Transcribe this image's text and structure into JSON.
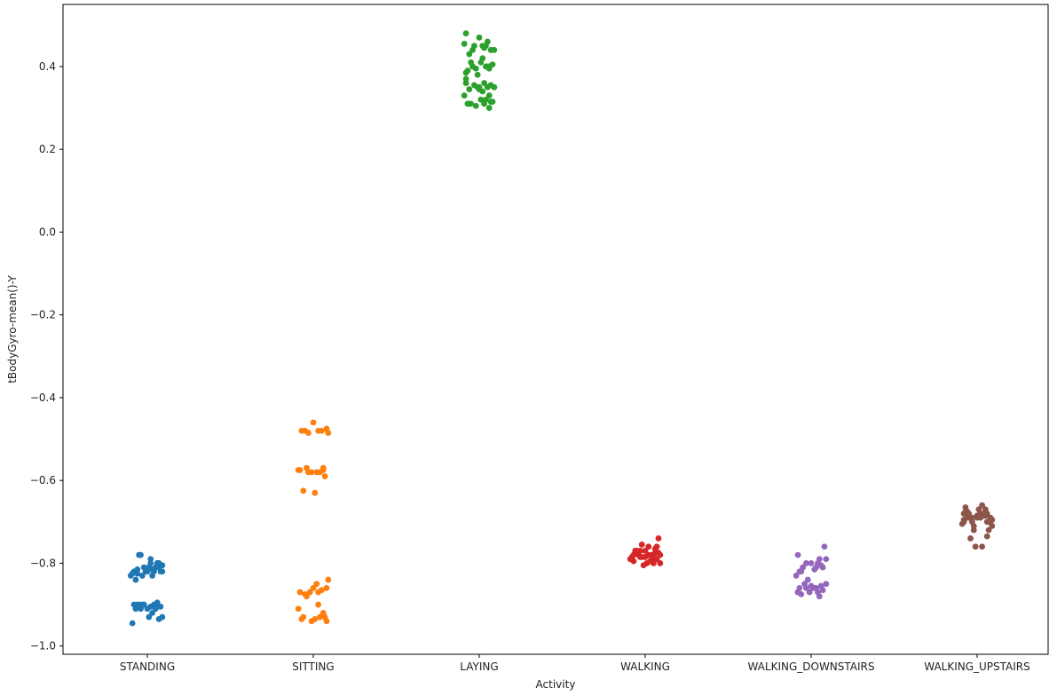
{
  "chart_data": {
    "type": "scatter",
    "title": "",
    "xlabel": "Activity",
    "ylabel": "tBodyGyro-mean()-Y",
    "categories": [
      "STANDING",
      "SITTING",
      "LAYING",
      "WALKING",
      "WALKING_DOWNSTAIRS",
      "WALKING_UPSTAIRS"
    ],
    "ylim": [
      -1.02,
      0.55
    ],
    "yticks": [
      -1.0,
      -0.8,
      -0.6,
      -0.4,
      -0.2,
      0.0,
      0.2,
      0.4
    ],
    "ytick_labels": [
      "−1.0",
      "−0.8",
      "−0.6",
      "−0.4",
      "−0.2",
      "0.0",
      "0.2",
      "0.4"
    ],
    "grid": false,
    "colors": [
      "#1f77b4",
      "#ff7f0e",
      "#2ca02c",
      "#d62728",
      "#9467bd",
      "#8c564b"
    ],
    "series": [
      {
        "category": "STANDING",
        "jitter": [
          -0.08,
          0.05,
          -0.03,
          0.07,
          0.0,
          -0.06,
          0.03,
          0.09,
          -0.1,
          0.02,
          -0.05,
          0.06,
          -0.02,
          0.08,
          -0.07,
          0.04,
          0.01,
          -0.09,
          0.06,
          -0.04,
          0.03,
          -0.01,
          0.07,
          -0.06,
          0.02,
          0.09,
          -0.08,
          0.05,
          -0.03,
          0.0,
          0.04,
          -0.07,
          0.08,
          -0.02,
          0.06,
          -0.05,
          0.01,
          0.07,
          -0.09,
          0.03,
          -0.04,
          0.05,
          0.09,
          -0.06,
          0.02
        ],
        "values": [
          -0.82,
          -0.81,
          -0.83,
          -0.8,
          -0.82,
          -0.825,
          -0.815,
          -0.805,
          -0.83,
          -0.79,
          -0.78,
          -0.8,
          -0.81,
          -0.82,
          -0.84,
          -0.82,
          -0.81,
          -0.825,
          -0.8,
          -0.78,
          -0.83,
          -0.82,
          -0.81,
          -0.815,
          -0.8,
          -0.82,
          -0.9,
          -0.905,
          -0.9,
          -0.91,
          -0.9,
          -0.91,
          -0.905,
          -0.9,
          -0.895,
          -0.9,
          -0.93,
          -0.935,
          -0.945,
          -0.92,
          -0.91,
          -0.91,
          -0.93,
          -0.9,
          -0.905
        ]
      },
      {
        "category": "SITTING",
        "jitter": [
          -0.07,
          0.05,
          -0.03,
          0.08,
          0.0,
          -0.05,
          0.03,
          0.09,
          -0.09,
          0.02,
          -0.04,
          0.06,
          -0.01,
          0.07,
          -0.08,
          0.04,
          0.01,
          -0.06,
          0.06,
          -0.03,
          0.03,
          -0.02,
          0.08,
          -0.05,
          0.02,
          0.09,
          -0.08,
          0.05,
          -0.04,
          0.0,
          0.04,
          -0.07,
          0.07,
          -0.01,
          0.06,
          -0.06,
          0.01,
          0.08,
          -0.09,
          0.03
        ],
        "values": [
          -0.48,
          -0.48,
          -0.485,
          -0.475,
          -0.46,
          -0.48,
          -0.48,
          -0.485,
          -0.575,
          -0.58,
          -0.57,
          -0.575,
          -0.58,
          -0.59,
          -0.575,
          -0.58,
          -0.63,
          -0.625,
          -0.57,
          -0.58,
          -0.87,
          -0.87,
          -0.86,
          -0.875,
          -0.85,
          -0.84,
          -0.87,
          -0.865,
          -0.88,
          -0.86,
          -0.93,
          -0.935,
          -0.93,
          -0.94,
          -0.92,
          -0.93,
          -0.935,
          -0.94,
          -0.91,
          -0.9
        ]
      },
      {
        "category": "LAYING",
        "jitter": [
          -0.08,
          0.05,
          -0.03,
          0.07,
          0.0,
          -0.06,
          0.03,
          0.09,
          -0.09,
          0.02,
          -0.05,
          0.06,
          -0.02,
          0.08,
          -0.07,
          0.04,
          0.01,
          -0.08,
          0.06,
          -0.04,
          0.03,
          -0.01,
          0.07,
          -0.06,
          0.02,
          0.09,
          -0.08,
          0.05,
          -0.03,
          0.0,
          0.04,
          -0.07,
          0.08,
          -0.02,
          0.06,
          -0.05,
          0.01,
          0.07,
          -0.09,
          0.03,
          -0.04,
          0.05,
          0.09,
          -0.06,
          0.02,
          -0.01,
          0.06,
          -0.08,
          0.04,
          0.0
        ],
        "values": [
          0.48,
          0.46,
          0.45,
          0.44,
          0.47,
          0.43,
          0.445,
          0.44,
          0.455,
          0.45,
          0.41,
          0.4,
          0.395,
          0.405,
          0.39,
          0.4,
          0.41,
          0.385,
          0.395,
          0.4,
          0.36,
          0.35,
          0.355,
          0.345,
          0.34,
          0.35,
          0.36,
          0.35,
          0.355,
          0.345,
          0.32,
          0.31,
          0.315,
          0.305,
          0.3,
          0.31,
          0.32,
          0.315,
          0.33,
          0.31,
          0.44,
          0.4,
          0.35,
          0.31,
          0.42,
          0.38,
          0.33,
          0.37,
          0.45,
          0.35
        ]
      },
      {
        "category": "WALKING",
        "jitter": [
          -0.08,
          0.05,
          -0.03,
          0.07,
          0.0,
          -0.06,
          0.03,
          0.09,
          -0.09,
          0.02,
          -0.05,
          0.06,
          -0.02,
          0.08,
          -0.07,
          0.04,
          0.01,
          -0.08,
          0.06,
          -0.04,
          0.03,
          -0.01,
          0.07,
          -0.06,
          0.02,
          0.09,
          -0.08,
          0.05,
          -0.03,
          0.0,
          0.04,
          -0.07,
          0.08,
          -0.02,
          0.06
        ],
        "values": [
          -0.79,
          -0.78,
          -0.77,
          -0.76,
          -0.785,
          -0.775,
          -0.795,
          -0.8,
          -0.79,
          -0.78,
          -0.77,
          -0.765,
          -0.755,
          -0.74,
          -0.78,
          -0.79,
          -0.8,
          -0.785,
          -0.775,
          -0.78,
          -0.795,
          -0.805,
          -0.79,
          -0.77,
          -0.76,
          -0.78,
          -0.79,
          -0.8,
          -0.785,
          -0.77,
          -0.78,
          -0.795,
          -0.775,
          -0.785,
          -0.79
        ]
      },
      {
        "category": "WALKING_DOWNSTAIRS",
        "jitter": [
          -0.08,
          0.05,
          -0.03,
          0.07,
          0.0,
          -0.06,
          0.03,
          0.09,
          -0.09,
          0.02,
          -0.05,
          0.06,
          -0.02,
          0.08,
          -0.07,
          0.04,
          0.01,
          -0.08,
          0.06,
          -0.04,
          0.03,
          -0.01,
          0.07,
          -0.06,
          0.02,
          0.09,
          -0.08,
          0.05,
          -0.03,
          0.0,
          0.04,
          -0.07
        ],
        "values": [
          -0.78,
          -0.79,
          -0.8,
          -0.81,
          -0.8,
          -0.82,
          -0.81,
          -0.79,
          -0.83,
          -0.815,
          -0.81,
          -0.805,
          -0.84,
          -0.76,
          -0.82,
          -0.8,
          -0.86,
          -0.87,
          -0.855,
          -0.85,
          -0.86,
          -0.87,
          -0.865,
          -0.875,
          -0.86,
          -0.85,
          -0.87,
          -0.88,
          -0.86,
          -0.855,
          -0.87,
          -0.86
        ]
      },
      {
        "category": "WALKING_UPSTAIRS",
        "jitter": [
          -0.08,
          0.05,
          -0.03,
          0.07,
          0.0,
          -0.06,
          0.03,
          0.09,
          -0.09,
          0.02,
          -0.05,
          0.06,
          -0.02,
          0.08,
          -0.07,
          0.04,
          0.01,
          -0.08,
          0.06,
          -0.04,
          0.03,
          -0.01,
          0.07,
          -0.06,
          0.02,
          0.09,
          -0.08,
          0.05,
          -0.03,
          0.0,
          0.04,
          -0.07,
          0.08,
          -0.02,
          0.06,
          -0.05
        ],
        "values": [
          -0.68,
          -0.67,
          -0.69,
          -0.7,
          -0.685,
          -0.675,
          -0.66,
          -0.695,
          -0.705,
          -0.69,
          -0.68,
          -0.7,
          -0.71,
          -0.69,
          -0.675,
          -0.685,
          -0.67,
          -0.7,
          -0.735,
          -0.74,
          -0.76,
          -0.76,
          -0.72,
          -0.69,
          -0.68,
          -0.71,
          -0.695,
          -0.685,
          -0.7,
          -0.69,
          -0.68,
          -0.665,
          -0.7,
          -0.72,
          -0.68,
          -0.69
        ]
      }
    ]
  }
}
